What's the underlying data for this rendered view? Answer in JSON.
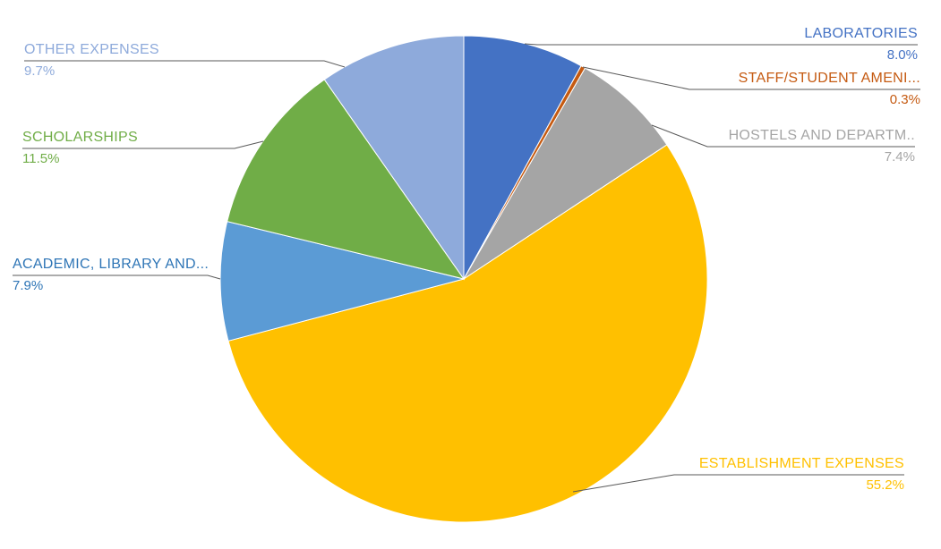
{
  "chart_data": {
    "type": "pie",
    "title": "",
    "direction": "clockwise",
    "start_angle_deg": 0,
    "legend": "callout-labels",
    "leader_line_color": "#595959",
    "background": "#FFFFFF",
    "slices": [
      {
        "key": "laboratories",
        "label": "LABORATORIES",
        "value": 8.0,
        "pct_label": "8.0%",
        "color": "#4472C4",
        "text_color": "#4472C4"
      },
      {
        "key": "staff_student_amenities",
        "label": "STAFF/STUDENT AMENI...",
        "value": 0.3,
        "pct_label": "0.3%",
        "color": "#C55A11",
        "text_color": "#C55A11"
      },
      {
        "key": "hostels_departments",
        "label": "HOSTELS AND DEPARTM..",
        "value": 7.4,
        "pct_label": "7.4%",
        "color": "#A5A5A5",
        "text_color": "#A5A5A5"
      },
      {
        "key": "establishment_expenses",
        "label": "ESTABLISHMENT EXPENSES",
        "value": 55.2,
        "pct_label": "55.2%",
        "color": "#FFC000",
        "text_color": "#FFC000"
      },
      {
        "key": "academic_library",
        "label": "ACADEMIC, LIBRARY AND...",
        "value": 7.9,
        "pct_label": "7.9%",
        "color": "#5B9BD5",
        "text_color": "#2E75B6"
      },
      {
        "key": "scholarships",
        "label": "SCHOLARSHIPS",
        "value": 11.5,
        "pct_label": "11.5%",
        "color": "#70AD47",
        "text_color": "#70AD47"
      },
      {
        "key": "other_expenses",
        "label": "OTHER EXPENSES",
        "value": 9.7,
        "pct_label": "9.7%",
        "color": "#8EAADB",
        "text_color": "#8EAADB"
      }
    ]
  }
}
